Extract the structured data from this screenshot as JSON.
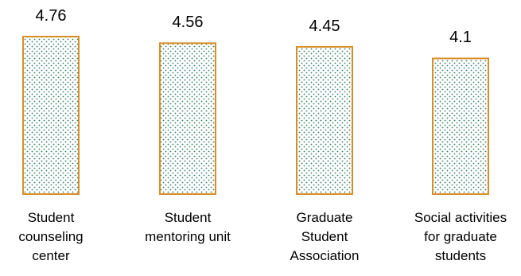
{
  "chart_data": {
    "type": "bar",
    "categories": [
      [
        "Student",
        "counseling",
        "center"
      ],
      [
        "Student",
        "mentoring unit"
      ],
      [
        "Graduate",
        "Student",
        "Association"
      ],
      [
        "Social activities",
        "for graduate",
        "students"
      ]
    ],
    "values": [
      4.76,
      4.56,
      4.45,
      4.1
    ],
    "value_labels": [
      "4.76",
      "4.56",
      "4.45",
      "4.1"
    ],
    "title": "",
    "xlabel": "",
    "ylabel": "",
    "grid": false,
    "legend": "none",
    "colors": {
      "bar_outline": "#D98E24",
      "bar_dot": "#2E7D5B",
      "bar_fill": "#FFFFFF"
    },
    "pattern": "dotted"
  }
}
